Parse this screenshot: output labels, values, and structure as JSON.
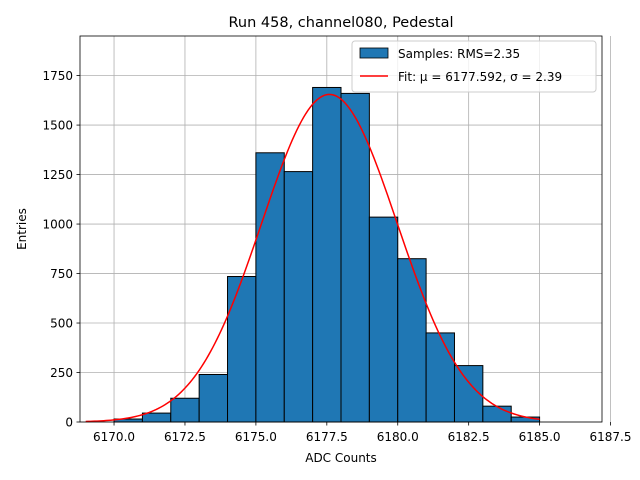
{
  "chart_data": {
    "type": "bar",
    "title": "Run 458, channel080, Pedestal",
    "xlabel": "ADC Counts",
    "ylabel": "Entries",
    "xlim": [
      6168.8,
      6187.2
    ],
    "ylim": [
      0,
      1950
    ],
    "x_ticks": [
      6170.0,
      6172.5,
      6175.0,
      6177.5,
      6180.0,
      6182.5,
      6185.0,
      6187.5
    ],
    "x_tick_labels": [
      "6170.0",
      "6172.5",
      "6175.0",
      "6177.5",
      "6180.0",
      "6182.5",
      "6185.0",
      "6187.5"
    ],
    "y_ticks": [
      0,
      250,
      500,
      750,
      1000,
      1250,
      1500,
      1750
    ],
    "y_tick_labels": [
      "0",
      "250",
      "500",
      "750",
      "1000",
      "1250",
      "1500",
      "1750"
    ],
    "grid": true,
    "legend_position": "top-right",
    "bins": [
      {
        "x0": 6170,
        "x1": 6171,
        "count": 15
      },
      {
        "x0": 6171,
        "x1": 6172,
        "count": 45
      },
      {
        "x0": 6172,
        "x1": 6173,
        "count": 120
      },
      {
        "x0": 6173,
        "x1": 6174,
        "count": 240
      },
      {
        "x0": 6174,
        "x1": 6175,
        "count": 735
      },
      {
        "x0": 6175,
        "x1": 6176,
        "count": 1360
      },
      {
        "x0": 6176,
        "x1": 6177,
        "count": 1265
      },
      {
        "x0": 6177,
        "x1": 6178,
        "count": 1690
      },
      {
        "x0": 6178,
        "x1": 6179,
        "count": 1660
      },
      {
        "x0": 6179,
        "x1": 6180,
        "count": 1035
      },
      {
        "x0": 6180,
        "x1": 6181,
        "count": 825
      },
      {
        "x0": 6181,
        "x1": 6182,
        "count": 450
      },
      {
        "x0": 6182,
        "x1": 6183,
        "count": 285
      },
      {
        "x0": 6183,
        "x1": 6184,
        "count": 80
      },
      {
        "x0": 6184,
        "x1": 6185,
        "count": 25
      }
    ],
    "series": [
      {
        "name": "Samples: RMS=2.35",
        "kind": "histogram",
        "color": "#1f77b4",
        "edgecolor": "#000000"
      },
      {
        "name": "Fit: μ = 6177.592, σ = 2.39",
        "kind": "gaussian-fit",
        "color": "#ff0000",
        "mu": 6177.592,
        "sigma": 2.39,
        "amplitude": 1655,
        "x_range": [
          6169,
          6185
        ]
      }
    ]
  }
}
